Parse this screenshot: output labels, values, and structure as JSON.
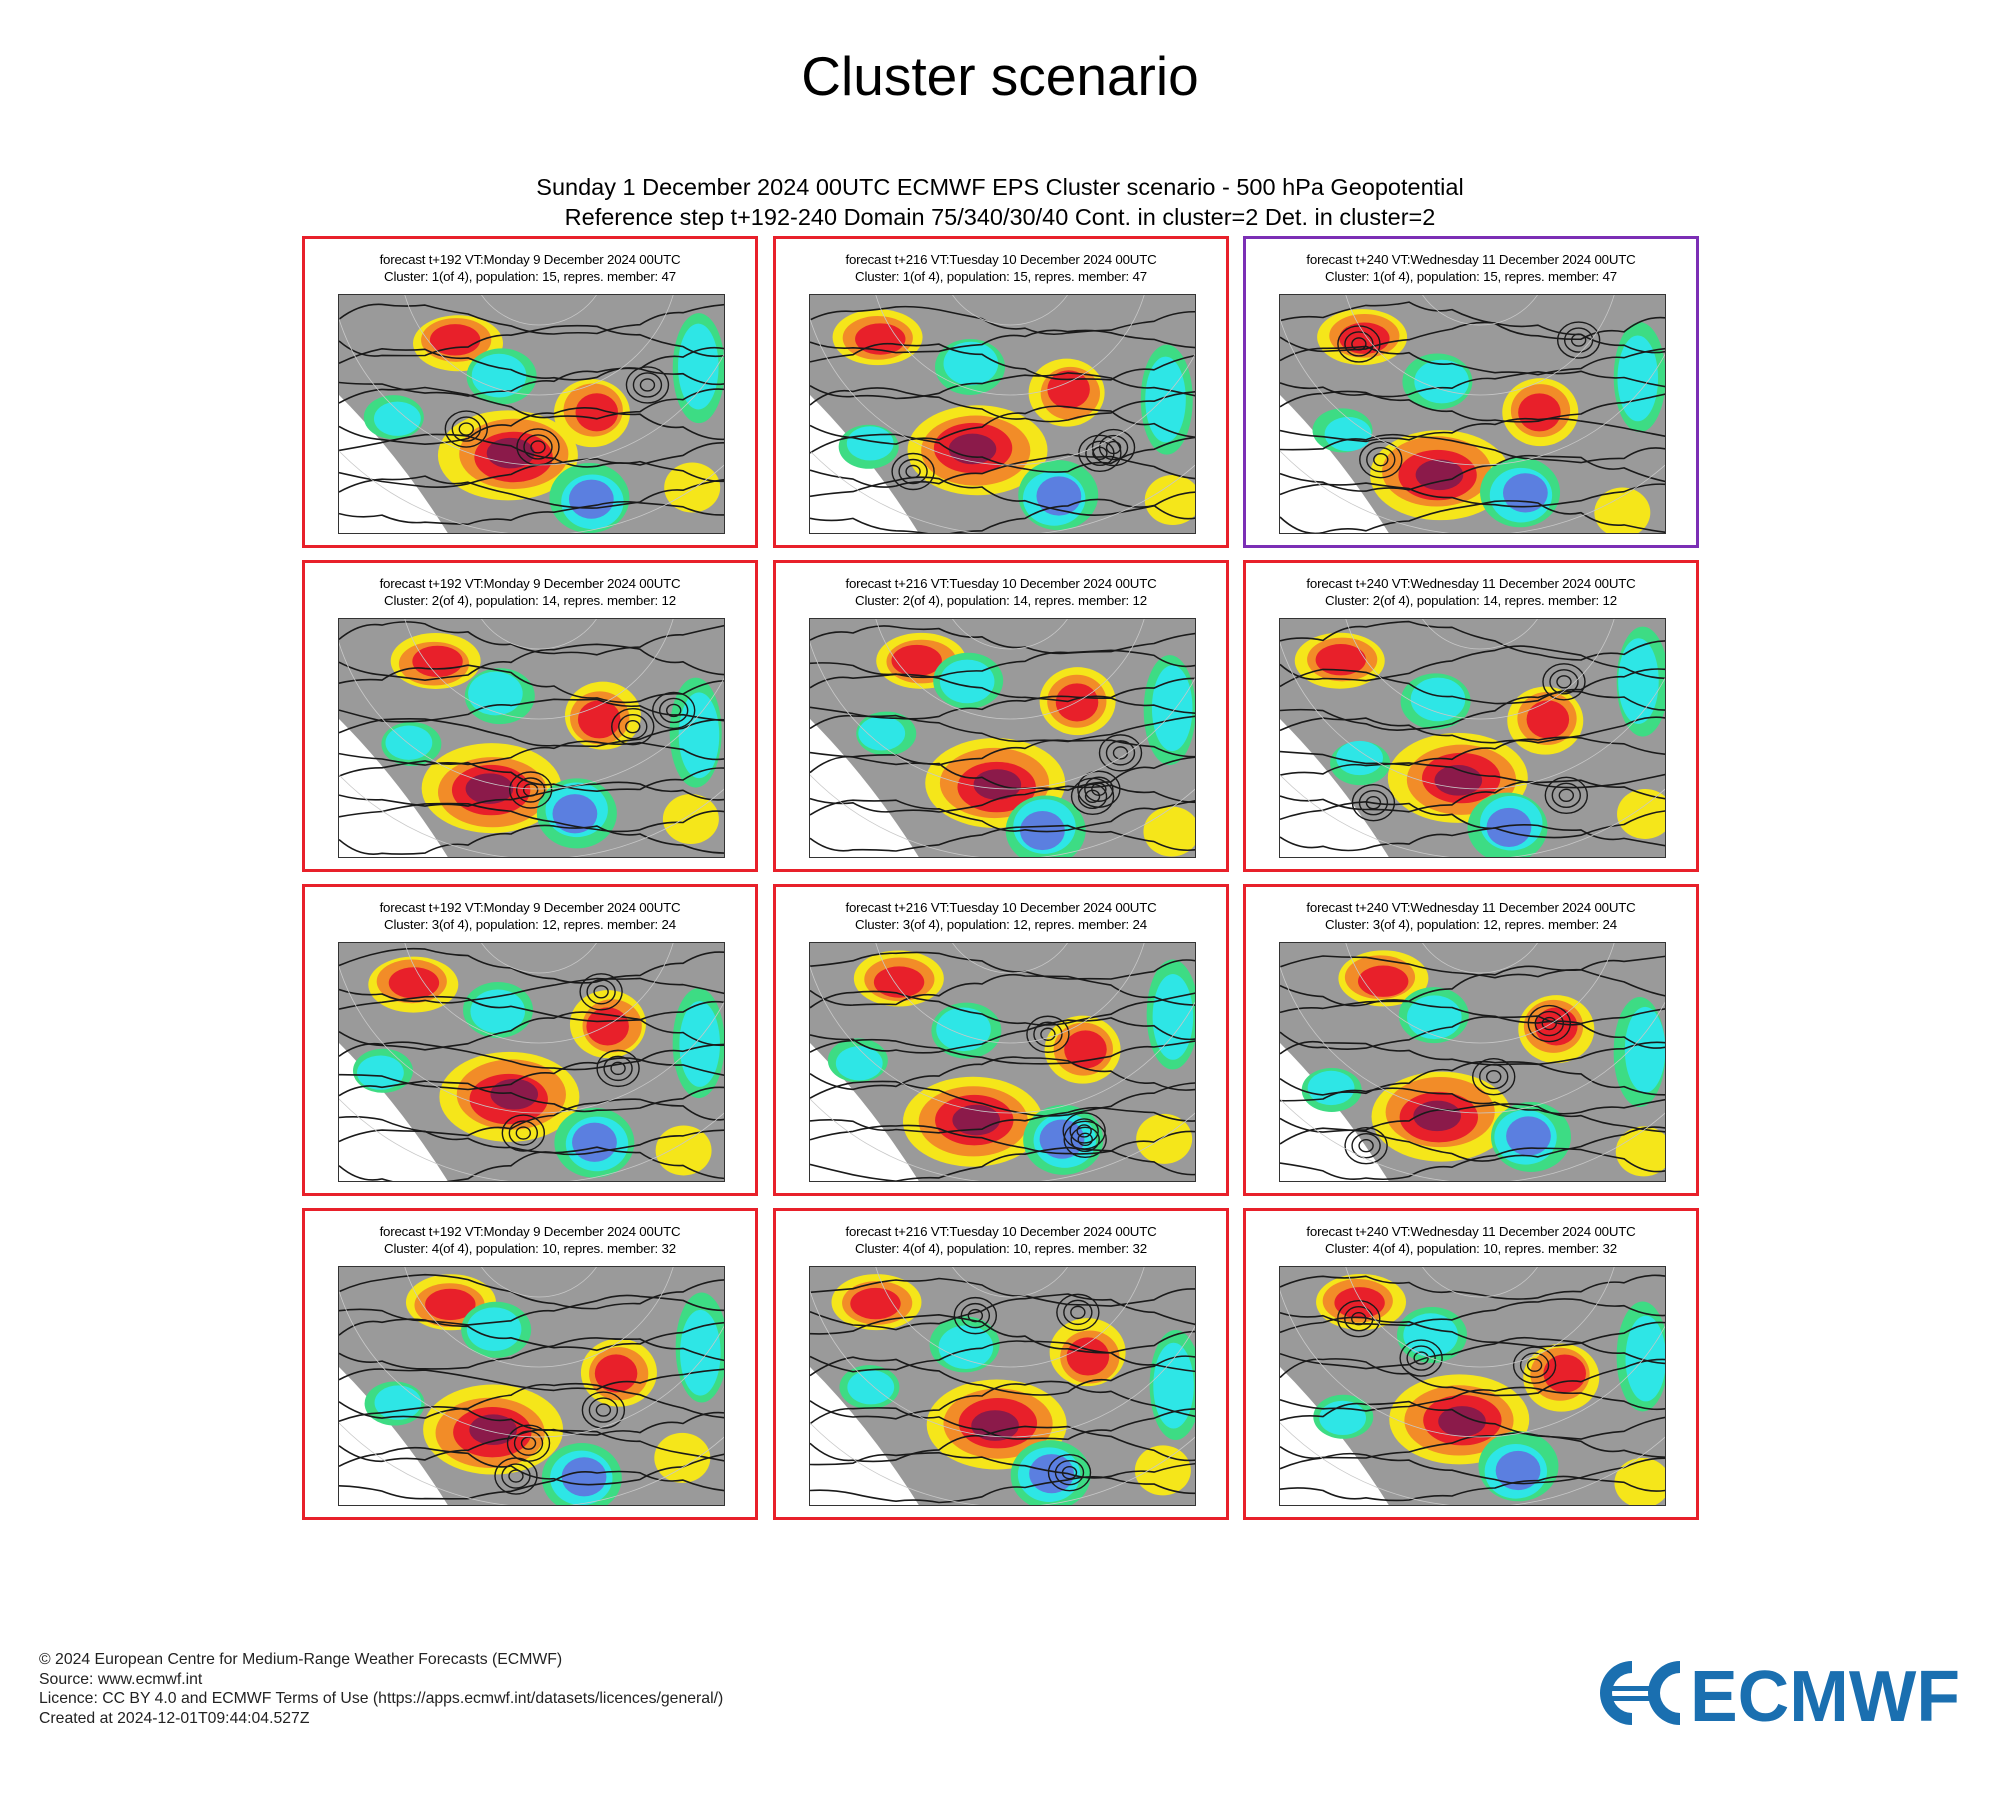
{
  "page": {
    "title": "Cluster scenario",
    "header": {
      "line1": "Sunday 1 December 2024 00UTC ECMWF EPS Cluster scenario - 500 hPa Geopotential",
      "line2": "Reference step t+192-240 Domain 75/340/30/40 Cont. in cluster=2 Det. in cluster=2"
    }
  },
  "panels": [
    {
      "line1": "forecast t+192 VT:Monday 9 December 2024 00UTC",
      "line2": "Cluster: 1(of 4), population: 15, repres. member: 47",
      "highlight": false
    },
    {
      "line1": "forecast t+216 VT:Tuesday 10 December 2024 00UTC",
      "line2": "Cluster: 1(of 4), population: 15, repres. member: 47",
      "highlight": false
    },
    {
      "line1": "forecast t+240 VT:Wednesday 11 December 2024 00UTC",
      "line2": "Cluster: 1(of 4), population: 15, repres. member: 47",
      "highlight": true
    },
    {
      "line1": "forecast t+192 VT:Monday 9 December 2024 00UTC",
      "line2": "Cluster: 2(of 4), population: 14, repres. member: 12",
      "highlight": false
    },
    {
      "line1": "forecast t+216 VT:Tuesday 10 December 2024 00UTC",
      "line2": "Cluster: 2(of 4), population: 14, repres. member: 12",
      "highlight": false
    },
    {
      "line1": "forecast t+240 VT:Wednesday 11 December 2024 00UTC",
      "line2": "Cluster: 2(of 4), population: 14, repres. member: 12",
      "highlight": false
    },
    {
      "line1": "forecast t+192 VT:Monday 9 December 2024 00UTC",
      "line2": "Cluster: 3(of 4), population: 12, repres. member: 24",
      "highlight": false
    },
    {
      "line1": "forecast t+216 VT:Tuesday 10 December 2024 00UTC",
      "line2": "Cluster: 3(of 4), population: 12, repres. member: 24",
      "highlight": false
    },
    {
      "line1": "forecast t+240 VT:Wednesday 11 December 2024 00UTC",
      "line2": "Cluster: 3(of 4), population: 12, repres. member: 24",
      "highlight": false
    },
    {
      "line1": "forecast t+192 VT:Monday 9 December 2024 00UTC",
      "line2": "Cluster: 4(of 4), population: 10, repres. member: 32",
      "highlight": false
    },
    {
      "line1": "forecast t+216 VT:Tuesday 10 December 2024 00UTC",
      "line2": "Cluster: 4(of 4), population: 10, repres. member: 32",
      "highlight": false
    },
    {
      "line1": "forecast t+240 VT:Wednesday 11 December 2024 00UTC",
      "line2": "Cluster: 4(of 4), population: 10, repres. member: 32",
      "highlight": false
    }
  ],
  "colors": {
    "panel_border": "#e8202a",
    "panel_border_highlight": "#7b2fb5",
    "anomaly_strong_positive": "#8b1a4a",
    "anomaly_positive": "#e8202a",
    "anomaly_moderate_positive": "#f28c28",
    "anomaly_weak_positive": "#f5e61a",
    "anomaly_neutral": "#9a9a9a",
    "anomaly_weak_negative": "#3ddc84",
    "anomaly_negative": "#2ee6e6",
    "anomaly_strong_negative": "#5b7fe0",
    "logo_blue": "#1a6fb0"
  },
  "footer": {
    "copyright": "© 2024 European Centre for Medium-Range Weather Forecasts (ECMWF)",
    "source": "Source: www.ecmwf.int",
    "licence": "Licence: CC BY 4.0 and ECMWF Terms of Use (https://apps.ecmwf.int/datasets/licences/general/)",
    "created": "Created at 2024-12-01T09:44:04.527Z"
  },
  "logo": {
    "text": "ECMWF",
    "icon": "ecmwf-logo-icon"
  }
}
